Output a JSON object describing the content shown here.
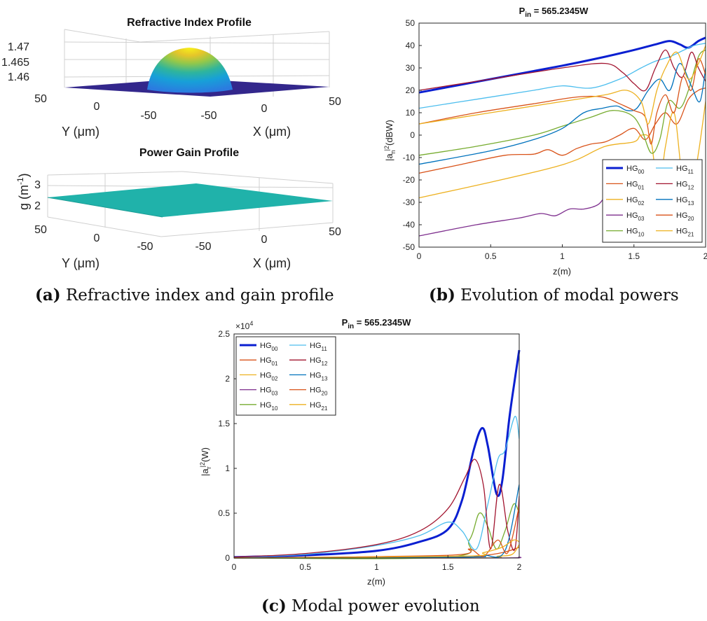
{
  "captions": {
    "a": {
      "tag": "(a)",
      "text": "Refractive index and gain profile"
    },
    "b": {
      "tag": "(b)",
      "text": "Evolution of modal powers"
    },
    "c": {
      "tag": "(c)",
      "text": "Modal power evolution"
    }
  },
  "panel_a": {
    "top": {
      "title": "Refractive Index Profile",
      "z_ticks": [
        "1.47",
        "1.465",
        "1.46"
      ],
      "y_ticks": [
        "50",
        "0",
        "-50"
      ],
      "x_ticks": [
        "-50",
        "0",
        "50"
      ],
      "ylabel": "Y (μm)",
      "xlabel": "X (μm)"
    },
    "bottom": {
      "title": "Power Gain Profile",
      "z_ticks": [
        "3",
        "2"
      ],
      "zlabel_main": "g (m",
      "zlabel_sup": "-1",
      "zlabel_end": ")",
      "y_ticks": [
        "50",
        "0",
        "-50"
      ],
      "x_ticks": [
        "-50",
        "0",
        "50"
      ],
      "ylabel": "Y (μm)",
      "xlabel": "X (μm)"
    }
  },
  "chart_data": [
    {
      "type": "line",
      "title": {
        "main": "P",
        "sub": "in",
        "rest": " = 565.2345W"
      },
      "xlabel": "z(m)",
      "ylabel": {
        "a": "|a",
        "sub": "n",
        "sup": "2",
        "rest": "(dBW)"
      },
      "xlim": [
        0,
        2
      ],
      "ylim": [
        -50,
        50
      ],
      "x_ticks": [
        "0",
        "0.5",
        "1",
        "1.5",
        "2"
      ],
      "y_ticks": [
        "-50",
        "-40",
        "-30",
        "-20",
        "-10",
        "0",
        "10",
        "20",
        "30",
        "40",
        "50"
      ],
      "legend_position": "bottom-right",
      "series": [
        {
          "name": "HG",
          "sub": "00",
          "color": "#0a1fd1",
          "width": 3,
          "points": [
            [
              0,
              19
            ],
            [
              0.5,
              25
            ],
            [
              1,
              31
            ],
            [
              1.3,
              35
            ],
            [
              1.5,
              38
            ],
            [
              1.65,
              40.5
            ],
            [
              1.75,
              42
            ],
            [
              1.82,
              40.5
            ],
            [
              1.88,
              39
            ],
            [
              1.95,
              42
            ],
            [
              2,
              43.5
            ]
          ]
        },
        {
          "name": "HG",
          "sub": "01",
          "color": "#d95319",
          "width": 1.3,
          "points": [
            [
              0,
              -17
            ],
            [
              0.3,
              -13
            ],
            [
              0.6,
              -9
            ],
            [
              0.8,
              -8.5
            ],
            [
              0.9,
              -6.5
            ],
            [
              1.0,
              -9
            ],
            [
              1.1,
              -6
            ],
            [
              1.2,
              -4
            ],
            [
              1.3,
              -3
            ],
            [
              1.4,
              0
            ],
            [
              1.5,
              3
            ],
            [
              1.58,
              -2
            ],
            [
              1.65,
              5
            ],
            [
              1.72,
              10
            ],
            [
              1.8,
              5
            ],
            [
              1.88,
              16
            ],
            [
              1.95,
              20
            ],
            [
              2,
              21
            ]
          ]
        },
        {
          "name": "HG",
          "sub": "02",
          "color": "#edb120",
          "width": 1.3,
          "points": [
            [
              0,
              -28
            ],
            [
              0.5,
              -21
            ],
            [
              0.9,
              -15
            ],
            [
              1.1,
              -11
            ],
            [
              1.3,
              -5
            ],
            [
              1.5,
              -3
            ],
            [
              1.55,
              0
            ],
            [
              1.62,
              -3
            ],
            [
              1.67,
              -26
            ],
            [
              1.72,
              -5
            ],
            [
              1.78,
              10
            ],
            [
              1.84,
              -20
            ],
            [
              1.9,
              -25
            ],
            [
              1.95,
              -8
            ],
            [
              2,
              15
            ]
          ]
        },
        {
          "name": "HG",
          "sub": "03",
          "color": "#7e2f8e",
          "width": 1.3,
          "points": [
            [
              0,
              -45
            ],
            [
              0.4,
              -40
            ],
            [
              0.7,
              -37
            ],
            [
              0.85,
              -35
            ],
            [
              0.95,
              -36
            ],
            [
              1.05,
              -33
            ],
            [
              1.15,
              -33
            ],
            [
              1.25,
              -31
            ],
            [
              1.3,
              -27
            ]
          ]
        },
        {
          "name": "HG",
          "sub": "10",
          "color": "#77ac30",
          "width": 1.3,
          "points": [
            [
              0,
              -9
            ],
            [
              0.4,
              -5
            ],
            [
              0.8,
              0
            ],
            [
              1.0,
              4
            ],
            [
              1.2,
              8
            ],
            [
              1.35,
              11
            ],
            [
              1.48,
              9
            ],
            [
              1.55,
              3
            ],
            [
              1.62,
              -8
            ],
            [
              1.68,
              -2
            ],
            [
              1.74,
              15
            ],
            [
              1.82,
              12
            ],
            [
              1.88,
              20
            ],
            [
              1.95,
              35
            ],
            [
              2,
              38
            ]
          ]
        },
        {
          "name": "HG",
          "sub": "11",
          "color": "#4dbeee",
          "width": 1.3,
          "points": [
            [
              0,
              12
            ],
            [
              0.4,
              16
            ],
            [
              0.8,
              20
            ],
            [
              1.0,
              22
            ],
            [
              1.2,
              21
            ],
            [
              1.4,
              25
            ],
            [
              1.55,
              30
            ],
            [
              1.65,
              33
            ],
            [
              1.75,
              35
            ],
            [
              1.85,
              38
            ],
            [
              1.92,
              40
            ],
            [
              2,
              41
            ]
          ]
        },
        {
          "name": "HG",
          "sub": "12",
          "color": "#a2142f",
          "width": 1.3,
          "points": [
            [
              0,
              20
            ],
            [
              0.5,
              25
            ],
            [
              1.0,
              30
            ],
            [
              1.3,
              32
            ],
            [
              1.42,
              28
            ],
            [
              1.5,
              23
            ],
            [
              1.58,
              20
            ],
            [
              1.65,
              30
            ],
            [
              1.72,
              38
            ],
            [
              1.78,
              30
            ],
            [
              1.84,
              26
            ],
            [
              1.9,
              37
            ],
            [
              1.95,
              30
            ],
            [
              2,
              24
            ]
          ]
        },
        {
          "name": "HG",
          "sub": "13",
          "color": "#0072bd",
          "width": 1.3,
          "points": [
            [
              0,
              -13
            ],
            [
              0.5,
              -7
            ],
            [
              0.8,
              -2
            ],
            [
              1.0,
              3
            ],
            [
              1.15,
              10
            ],
            [
              1.28,
              12
            ],
            [
              1.38,
              13
            ],
            [
              1.45,
              11
            ],
            [
              1.52,
              12
            ],
            [
              1.6,
              20
            ],
            [
              1.68,
              25
            ],
            [
              1.75,
              20
            ],
            [
              1.82,
              32
            ],
            [
              1.9,
              22
            ],
            [
              1.96,
              15
            ],
            [
              2,
              30
            ]
          ]
        },
        {
          "name": "HG",
          "sub": "20",
          "color": "#d95319",
          "width": 1.3,
          "points": [
            [
              0,
              5
            ],
            [
              0.4,
              10
            ],
            [
              0.8,
              14
            ],
            [
              1.1,
              17
            ],
            [
              1.28,
              17
            ],
            [
              1.4,
              14
            ],
            [
              1.5,
              11
            ],
            [
              1.58,
              8
            ],
            [
              1.62,
              -4
            ],
            [
              1.66,
              10
            ],
            [
              1.72,
              18
            ],
            [
              1.78,
              10
            ],
            [
              1.84,
              26
            ],
            [
              1.9,
              20
            ],
            [
              1.95,
              34
            ],
            [
              2,
              27
            ]
          ]
        },
        {
          "name": "HG",
          "sub": "21",
          "color": "#edb120",
          "width": 1.3,
          "points": [
            [
              0,
              5
            ],
            [
              0.5,
              10
            ],
            [
              1.0,
              15
            ],
            [
              1.3,
              18
            ],
            [
              1.45,
              20
            ],
            [
              1.55,
              15
            ],
            [
              1.6,
              5
            ],
            [
              1.66,
              20
            ],
            [
              1.72,
              30
            ],
            [
              1.8,
              37
            ],
            [
              1.88,
              25
            ],
            [
              1.95,
              32
            ],
            [
              2,
              40
            ]
          ]
        }
      ]
    },
    {
      "type": "line",
      "title": {
        "main": "P",
        "sub": "in",
        "rest": " = 565.2345W"
      },
      "xlabel": "z(m)",
      "ylabel": {
        "a": "|a",
        "sub": "r",
        "sup": "2",
        "rest": "(W)"
      },
      "exponent": {
        "base": "×10",
        "power": "4"
      },
      "xlim": [
        0,
        2
      ],
      "ylim": [
        0,
        2.5
      ],
      "x_ticks": [
        "0",
        "0.5",
        "1",
        "1.5",
        "2"
      ],
      "y_ticks": [
        "0",
        "0.5",
        "1",
        "1.5",
        "2",
        "2.5"
      ],
      "legend_position": "top-left",
      "series": [
        {
          "name": "HG",
          "sub": "00",
          "color": "#0a1fd1",
          "width": 3,
          "points": [
            [
              0,
              0.01
            ],
            [
              0.5,
              0.03
            ],
            [
              1.0,
              0.08
            ],
            [
              1.3,
              0.18
            ],
            [
              1.5,
              0.32
            ],
            [
              1.6,
              0.65
            ],
            [
              1.68,
              1.2
            ],
            [
              1.74,
              1.45
            ],
            [
              1.78,
              1.25
            ],
            [
              1.84,
              0.72
            ],
            [
              1.88,
              0.85
            ],
            [
              1.93,
              1.55
            ],
            [
              1.97,
              2.0
            ],
            [
              2,
              2.32
            ]
          ]
        },
        {
          "name": "HG",
          "sub": "01",
          "color": "#d95319",
          "width": 1.3,
          "points": [
            [
              0,
              0
            ],
            [
              1.5,
              0.01
            ],
            [
              1.7,
              0.02
            ],
            [
              1.85,
              0.05
            ],
            [
              1.93,
              0.08
            ],
            [
              2,
              0.12
            ]
          ]
        },
        {
          "name": "HG",
          "sub": "02",
          "color": "#edb120",
          "width": 1.3,
          "points": [
            [
              0,
              0
            ],
            [
              1.7,
              0
            ],
            [
              1.85,
              0.02
            ],
            [
              1.95,
              0.04
            ],
            [
              2,
              0.15
            ]
          ]
        },
        {
          "name": "HG",
          "sub": "03",
          "color": "#7e2f8e",
          "width": 1.3,
          "points": [
            [
              0,
              0
            ],
            [
              1.8,
              0
            ],
            [
              2,
              0.01
            ]
          ]
        },
        {
          "name": "HG",
          "sub": "10",
          "color": "#77ac30",
          "width": 1.3,
          "points": [
            [
              0,
              0
            ],
            [
              1.5,
              0.01
            ],
            [
              1.65,
              0.2
            ],
            [
              1.72,
              0.5
            ],
            [
              1.78,
              0.35
            ],
            [
              1.84,
              0.1
            ],
            [
              1.9,
              0.3
            ],
            [
              1.96,
              0.6
            ],
            [
              2,
              0.5
            ]
          ]
        },
        {
          "name": "HG",
          "sub": "11",
          "color": "#4dbeee",
          "width": 1.3,
          "points": [
            [
              0,
              0.01
            ],
            [
              0.5,
              0.04
            ],
            [
              1.0,
              0.14
            ],
            [
              1.3,
              0.25
            ],
            [
              1.5,
              0.4
            ],
            [
              1.6,
              0.3
            ],
            [
              1.7,
              0.1
            ],
            [
              1.78,
              0.6
            ],
            [
              1.85,
              1.1
            ],
            [
              1.9,
              1.2
            ],
            [
              1.97,
              1.58
            ],
            [
              2,
              1.33
            ]
          ]
        },
        {
          "name": "HG",
          "sub": "12",
          "color": "#a2142f",
          "width": 1.3,
          "points": [
            [
              0,
              0.01
            ],
            [
              0.5,
              0.05
            ],
            [
              1.0,
              0.15
            ],
            [
              1.3,
              0.3
            ],
            [
              1.5,
              0.55
            ],
            [
              1.62,
              0.9
            ],
            [
              1.69,
              1.1
            ],
            [
              1.75,
              0.8
            ],
            [
              1.8,
              0.1
            ],
            [
              1.86,
              0.82
            ],
            [
              1.92,
              0.3
            ],
            [
              1.97,
              0.1
            ],
            [
              2,
              0.69
            ]
          ]
        },
        {
          "name": "HG",
          "sub": "13",
          "color": "#0072bd",
          "width": 1.3,
          "points": [
            [
              0,
              0
            ],
            [
              1.6,
              0.01
            ],
            [
              1.75,
              0.03
            ],
            [
              1.9,
              0.08
            ],
            [
              2,
              0.82
            ]
          ]
        },
        {
          "name": "HG",
          "sub": "20",
          "color": "#d95319",
          "width": 1.3,
          "points": [
            [
              0,
              0
            ],
            [
              1.5,
              0.03
            ],
            [
              1.65,
              0.1
            ],
            [
              1.75,
              0.02
            ],
            [
              1.85,
              0.2
            ],
            [
              1.92,
              0.06
            ],
            [
              2,
              0.58
            ]
          ]
        },
        {
          "name": "HG",
          "sub": "21",
          "color": "#edb120",
          "width": 1.3,
          "points": [
            [
              0,
              0
            ],
            [
              1.6,
              0.02
            ],
            [
              1.75,
              0.06
            ],
            [
              1.88,
              0.12
            ],
            [
              1.96,
              0.2
            ],
            [
              2,
              0.18
            ]
          ]
        }
      ]
    }
  ]
}
